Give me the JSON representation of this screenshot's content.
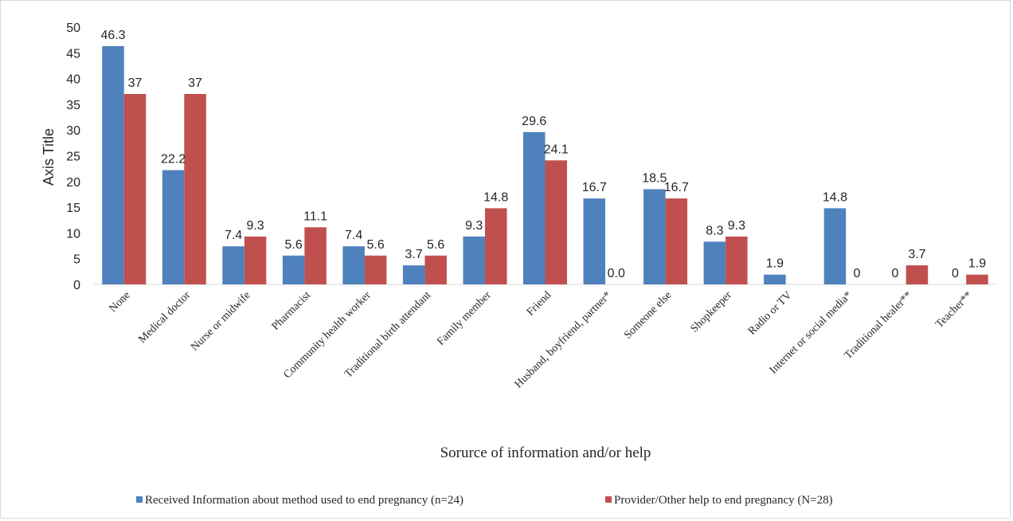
{
  "chart_data": {
    "type": "bar",
    "categories": [
      "None",
      "Medical doctor",
      "Nurse or midwife",
      "Pharmacist",
      "Community health worker",
      "Traditional birth attendant",
      "Family member",
      "Friend",
      "Husband, boyfriend, partner*",
      "Someone else",
      "Shopkeeper",
      "Radio or TV",
      "Internet or social media*",
      "Traditional healer**",
      "Teacher**"
    ],
    "series": [
      {
        "name": "Received Information about method used to end pregnancy (n=24)",
        "color": "#4f81bd",
        "values": [
          46.3,
          22.2,
          7.4,
          5.6,
          7.4,
          3.7,
          9.3,
          29.6,
          16.7,
          18.5,
          8.3,
          1.9,
          14.8,
          0,
          0
        ],
        "labels": [
          "46.3",
          "22.2",
          "7.4",
          "5.6",
          "7.4",
          "3.7",
          "9.3",
          "29.6",
          "16.7",
          "18.5",
          "8.3",
          "1.9",
          "14.8",
          "0",
          "0"
        ]
      },
      {
        "name": "Provider/Other help to end pregnancy (N=28)",
        "color": "#c0504d",
        "values": [
          37,
          37,
          9.3,
          11.1,
          5.6,
          5.6,
          14.8,
          24.1,
          0,
          16.7,
          9.3,
          0,
          0,
          3.7,
          1.9
        ],
        "labels": [
          "37",
          "37",
          "9.3",
          "11.1",
          "5.6",
          "5.6",
          "14.8",
          "24.1",
          "0.0",
          "16.7",
          "9.3",
          "",
          "0",
          "3.7",
          "1.9"
        ]
      }
    ],
    "ylabel": "Axis Title",
    "xlabel": "Sorurce of information and/or help",
    "ylim": [
      0,
      50
    ],
    "yticks": [
      0,
      5,
      10,
      15,
      20,
      25,
      30,
      35,
      40,
      45,
      50
    ],
    "grid": false,
    "legend_position": "bottom"
  }
}
